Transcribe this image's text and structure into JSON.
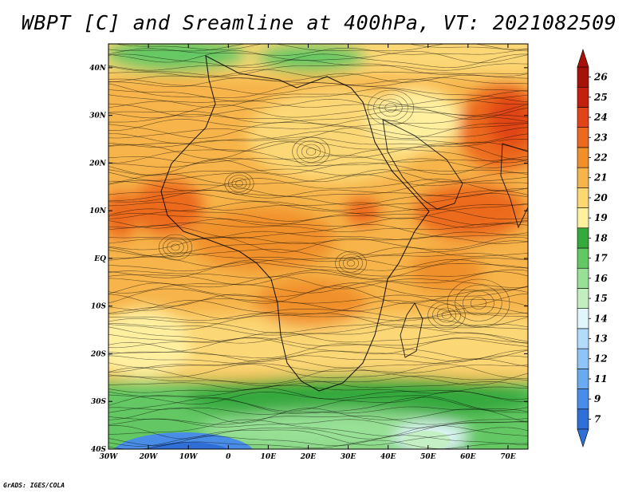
{
  "title": "WBPT [C] and Sreamline at 400hPa, VT: 2021082509",
  "credit": "GrADS: IGES/COLA",
  "map": {
    "lon_labels": [
      "30W",
      "20W",
      "10W",
      "0",
      "10E",
      "20E",
      "30E",
      "40E",
      "50E",
      "60E",
      "70E"
    ],
    "lat_labels": [
      "40N",
      "30N",
      "20N",
      "10N",
      "EQ",
      "10S",
      "20S",
      "30S",
      "40S"
    ],
    "lon_range": [
      -30,
      75
    ],
    "lat_range": [
      -40,
      45
    ],
    "field": "WBPT",
    "units": "C",
    "level": "400hPa",
    "valid_time": "2021082509"
  },
  "colorbar": {
    "labels": [
      "7",
      "9",
      "11",
      "12",
      "13",
      "14",
      "15",
      "16",
      "17",
      "18",
      "19",
      "20",
      "21",
      "22",
      "23",
      "24",
      "25",
      "26"
    ],
    "colors": [
      "#2f6fd6",
      "#4a8de6",
      "#6aaaf0",
      "#8ec4f7",
      "#b2dcfa",
      "#e0f6fb",
      "#c2efc0",
      "#98e095",
      "#63c863",
      "#36a93c",
      "#fff0a0",
      "#fcd774",
      "#f6b44a",
      "#f0902b",
      "#ec6a1f",
      "#e04418",
      "#c42010",
      "#a61208"
    ]
  }
}
